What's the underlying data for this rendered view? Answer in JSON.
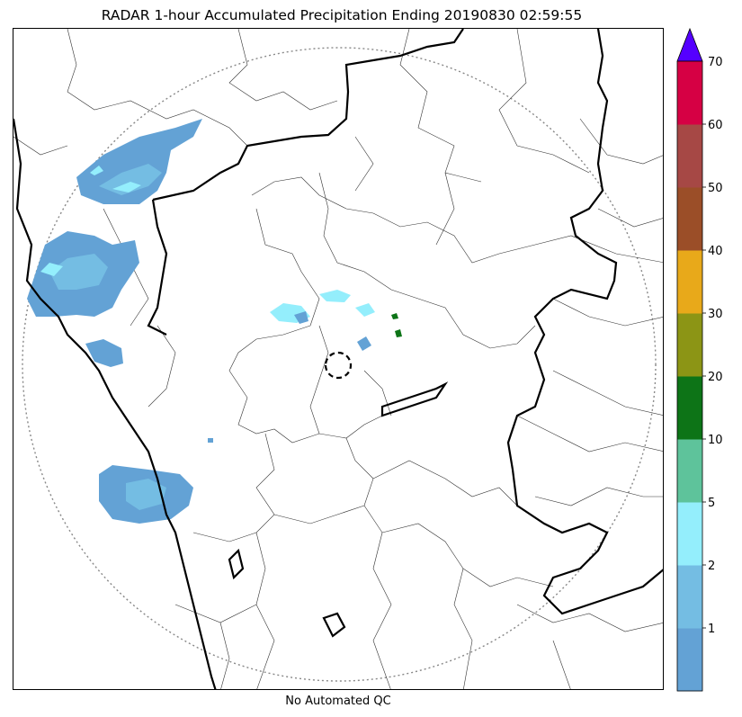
{
  "title": "RADAR 1-hour Accumulated Precipitation Ending 20190830 02:59:55",
  "footer": "No Automated QC",
  "colorbar": {
    "levels": [
      {
        "label": "",
        "color": "#63a2d5"
      },
      {
        "label": "1",
        "color": "#74bde3"
      },
      {
        "label": "2",
        "color": "#94eefc"
      },
      {
        "label": "5",
        "color": "#5ec39b"
      },
      {
        "label": "10",
        "color": "#0d7417"
      },
      {
        "label": "20",
        "color": "#8c9515"
      },
      {
        "label": "30",
        "color": "#e8a91a"
      },
      {
        "label": "40",
        "color": "#9b4e28"
      },
      {
        "label": "50",
        "color": "#a64845"
      },
      {
        "label": "60",
        "color": "#d60044"
      }
    ],
    "top_label": "70",
    "extend_color": "#5500ff"
  }
}
